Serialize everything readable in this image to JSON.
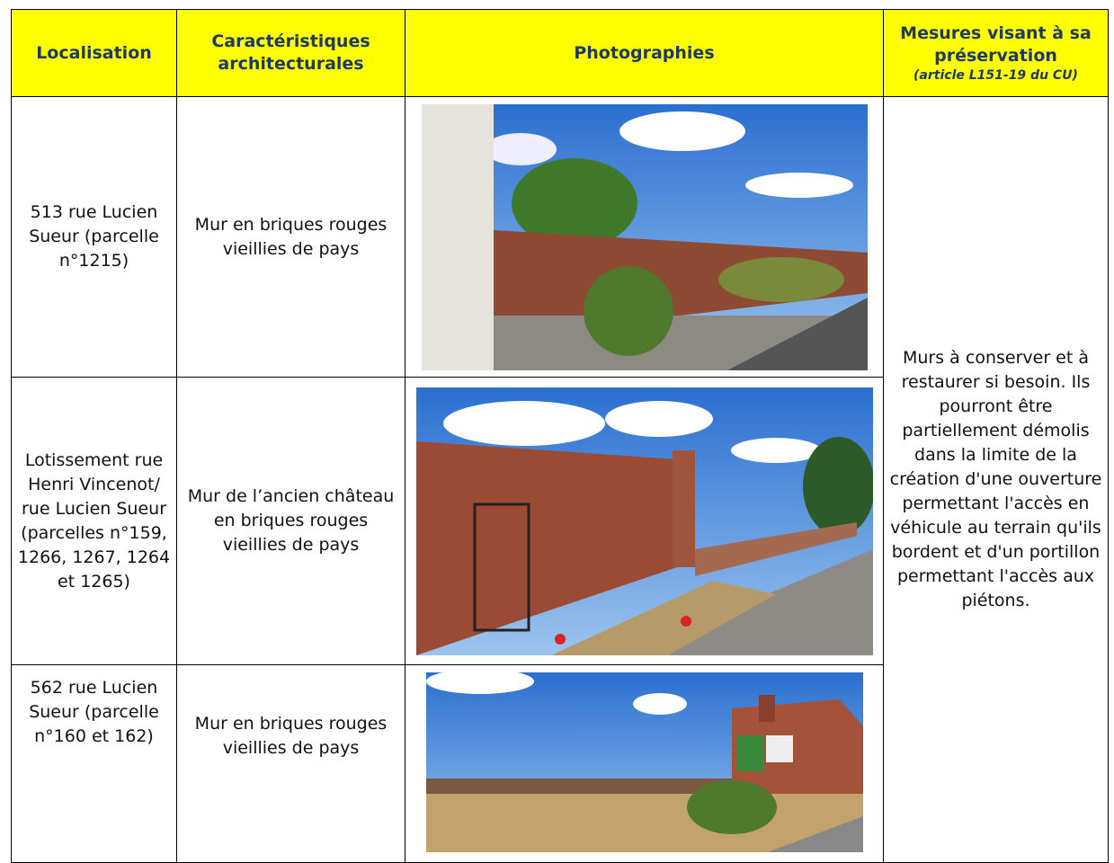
{
  "header": {
    "columns": [
      "Localisation",
      "Caractéristiques architecturales",
      "Photographies"
    ],
    "measures_title": "Mesures visant à sa préservation",
    "measures_note": "(article L151-19 du CU)"
  },
  "table": {
    "rows": [
      [
        "513 rue Lucien Sueur (parcelle n°1215)",
        "Mur en briques rouges vieillies de pays"
      ],
      [
        "Lotissement rue Henri Vincenot/ rue Lucien Sueur (parcelles n°159, 1266, 1267, 1264 et 1265)",
        "Mur de l’ancien château en briques rouges vieillies de pays"
      ],
      [
        "562 rue Lucien Sueur (parcelle n°160 et 162)",
        "Mur en briques rouges vieillies de pays"
      ]
    ],
    "measures": "Murs à conserver et à restaurer si besoin. Ils pourront être partiellement démolis dans la limite de la création d'une ouverture permettant l'accès en véhicule au terrain qu'ils bordent et d'un portillon permettant l'accès aux piétons."
  }
}
